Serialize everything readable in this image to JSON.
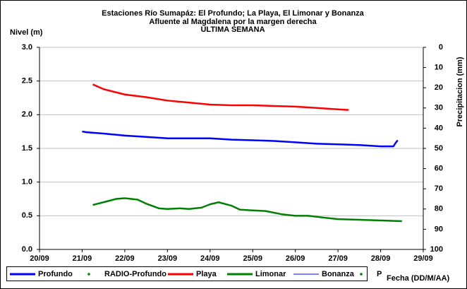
{
  "chart_data": {
    "type": "line",
    "title": [
      "Estaciones Río Sumapáz: El Profundo; La Playa, El Limonar y Bonanza",
      "Afluente al Magdalena por la margen derecha",
      "ULTIMA SEMANA"
    ],
    "ylabel": "Nivel (m)",
    "y2label": "Precipitacion (mm)",
    "xlabel": "Fecha (DD/M/AA)",
    "xlim": [
      20,
      29
    ],
    "xticks": [
      {
        "value": 20,
        "label": "20/09"
      },
      {
        "value": 21,
        "label": "21/09"
      },
      {
        "value": 22,
        "label": "22/09"
      },
      {
        "value": 23,
        "label": "23/09"
      },
      {
        "value": 24,
        "label": "24/09"
      },
      {
        "value": 25,
        "label": "25/09"
      },
      {
        "value": 26,
        "label": "26/09"
      },
      {
        "value": 27,
        "label": "27/09"
      },
      {
        "value": 28,
        "label": "28/09"
      },
      {
        "value": 29,
        "label": "29/09"
      }
    ],
    "ylim": [
      0,
      3
    ],
    "yticks": [
      {
        "value": 0,
        "label": "0.0"
      },
      0.5,
      {
        "value": 1,
        "label": "1.0"
      },
      1.5,
      {
        "value": 2,
        "label": "2.0"
      },
      2.5,
      {
        "value": 3,
        "label": "3.0"
      }
    ],
    "y2lim": [
      100,
      0
    ],
    "y2ticks": [
      0,
      10,
      20,
      30,
      40,
      50,
      60,
      70,
      80,
      90,
      100
    ],
    "legend": "bottom",
    "series": [
      {
        "name": "Profundo",
        "color": "#0000ff",
        "marker": "line",
        "x": [
          21.0,
          21.1,
          21.5,
          22.0,
          22.5,
          23.0,
          24.0,
          24.5,
          25.0,
          25.5,
          26.0,
          26.5,
          27.0,
          27.5,
          28.0,
          28.3,
          28.35,
          28.4
        ],
        "values": [
          1.75,
          1.74,
          1.72,
          1.69,
          1.67,
          1.65,
          1.65,
          1.63,
          1.62,
          1.61,
          1.59,
          1.57,
          1.56,
          1.55,
          1.53,
          1.53,
          1.58,
          1.62
        ]
      },
      {
        "name": "RADIO-Profundo",
        "color": "#008000",
        "marker": "dot",
        "x": [],
        "values": []
      },
      {
        "name": "Playa",
        "color": "#ff0000",
        "marker": "line",
        "x": [
          21.25,
          21.5,
          22.0,
          22.5,
          23.0,
          23.5,
          24.0,
          24.5,
          25.0,
          25.5,
          26.0,
          26.5,
          27.0,
          27.25
        ],
        "values": [
          2.45,
          2.38,
          2.3,
          2.26,
          2.21,
          2.18,
          2.15,
          2.14,
          2.14,
          2.13,
          2.12,
          2.1,
          2.08,
          2.07
        ]
      },
      {
        "name": "Limonar",
        "color": "#008000",
        "marker": "line",
        "x": [
          21.25,
          21.5,
          21.8,
          22.0,
          22.3,
          22.5,
          22.8,
          23.0,
          23.3,
          23.5,
          23.8,
          24.0,
          24.2,
          24.5,
          24.7,
          25.0,
          25.3,
          25.7,
          26.0,
          26.3,
          26.7,
          27.0,
          27.5,
          28.0,
          28.5
        ],
        "values": [
          0.66,
          0.7,
          0.75,
          0.76,
          0.74,
          0.68,
          0.61,
          0.6,
          0.61,
          0.6,
          0.62,
          0.67,
          0.7,
          0.65,
          0.59,
          0.58,
          0.57,
          0.52,
          0.5,
          0.5,
          0.47,
          0.45,
          0.44,
          0.43,
          0.42
        ]
      },
      {
        "name": "Bonanza",
        "color": "#0000ff",
        "marker": "thin",
        "x": [],
        "values": []
      },
      {
        "name": "P",
        "color": "#008000",
        "marker": "dot",
        "axis": "y2",
        "x": [],
        "values": []
      }
    ]
  }
}
